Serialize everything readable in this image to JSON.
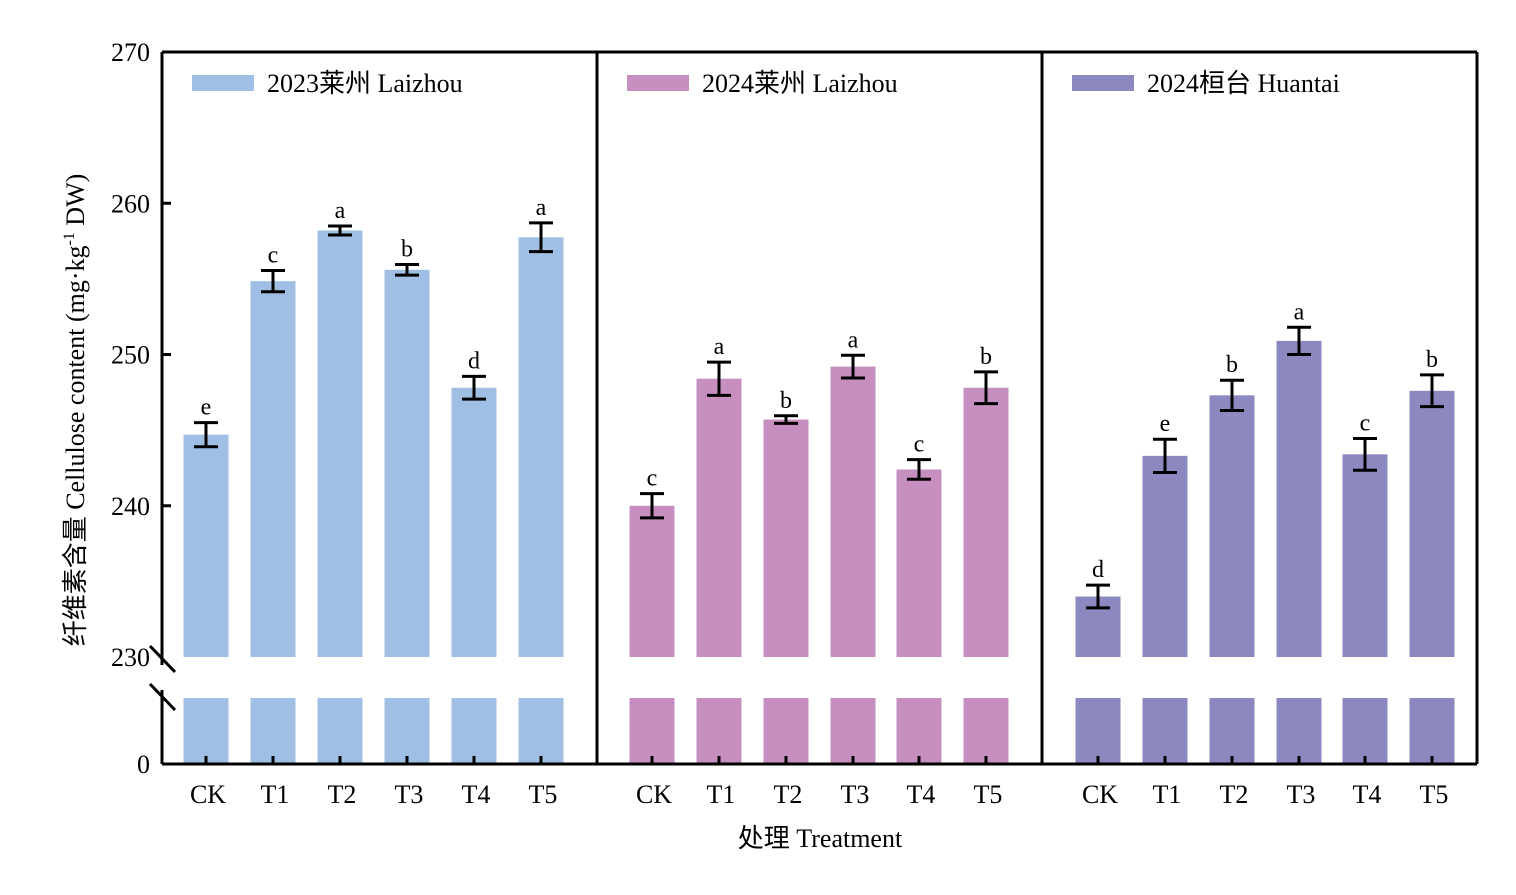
{
  "chart_data": {
    "type": "bar",
    "title": "",
    "xlabel": "处理 Treatment",
    "ylabel_cn": "纤维素含量 Cellulose content (mg·kg",
    "ylabel_sup": "-1",
    "ylabel_tail": " DW)",
    "ylim_upper": [
      230,
      270
    ],
    "ylim_lower": [
      0,
      230
    ],
    "axis_break": true,
    "yticks": [
      270,
      260,
      250,
      240,
      230,
      0
    ],
    "grid": false,
    "categories": [
      "CK",
      "T1",
      "T2",
      "T3",
      "T4",
      "T5"
    ],
    "series": [
      {
        "name": "2023莱州 Laizhou",
        "color": "#A0BFE4",
        "values": [
          244.7,
          254.85,
          258.2,
          255.6,
          247.8,
          257.75
        ],
        "errors": [
          0.8,
          0.7,
          0.3,
          0.35,
          0.75,
          0.95
        ],
        "letters": [
          "e",
          "c",
          "a",
          "b",
          "d",
          "a"
        ]
      },
      {
        "name": "2024莱州 Laizhou",
        "color": "#C68FC0",
        "values": [
          240.0,
          248.4,
          245.7,
          249.2,
          242.4,
          247.8
        ],
        "errors": [
          0.8,
          1.1,
          0.25,
          0.75,
          0.65,
          1.05
        ],
        "letters": [
          "c",
          "a",
          "b",
          "a",
          "c",
          "b"
        ]
      },
      {
        "name": "2024桓台 Huantai",
        "color": "#8C89C0",
        "values": [
          234.0,
          243.3,
          247.3,
          250.9,
          243.4,
          247.6
        ],
        "errors": [
          0.75,
          1.1,
          1.0,
          0.9,
          1.05,
          1.05
        ],
        "letters": [
          "d",
          "e",
          "b",
          "a",
          "c",
          "b"
        ]
      }
    ],
    "legend_placement": "top-left of each panel"
  }
}
